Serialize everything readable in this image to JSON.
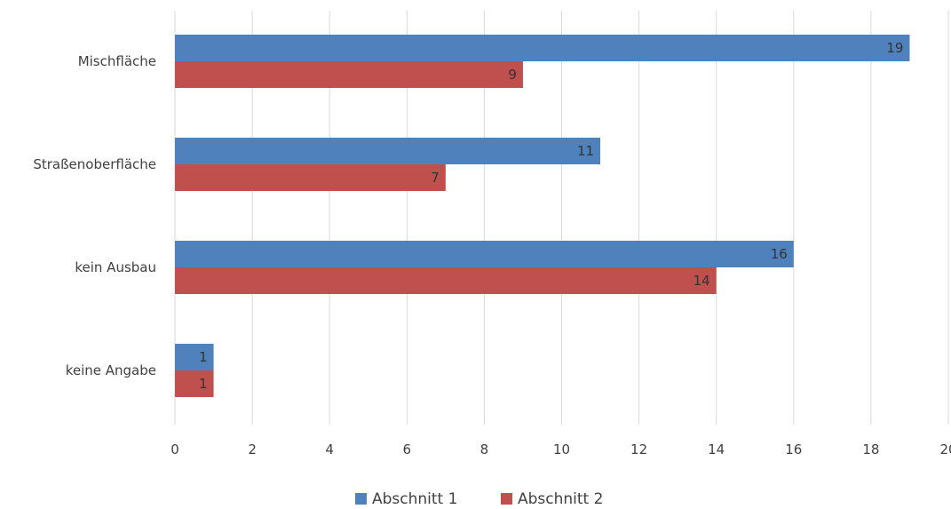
{
  "chart_data": {
    "type": "bar",
    "orientation": "horizontal",
    "categories": [
      "Mischfläche",
      "Straßenoberfläche",
      "kein Ausbau",
      "keine Angabe"
    ],
    "series": [
      {
        "name": "Abschnitt 1",
        "values": [
          19,
          11,
          16,
          1
        ],
        "color": "#4F81BD"
      },
      {
        "name": "Abschnitt 2",
        "values": [
          9,
          7,
          14,
          1
        ],
        "color": "#C0504D"
      }
    ],
    "xlim": [
      0,
      20
    ],
    "xticks": [
      "0",
      "2",
      "4",
      "6",
      "8",
      "10",
      "12",
      "14",
      "16",
      "18",
      "20"
    ],
    "grid": true,
    "legend_position": "bottom",
    "data_labels": true
  }
}
